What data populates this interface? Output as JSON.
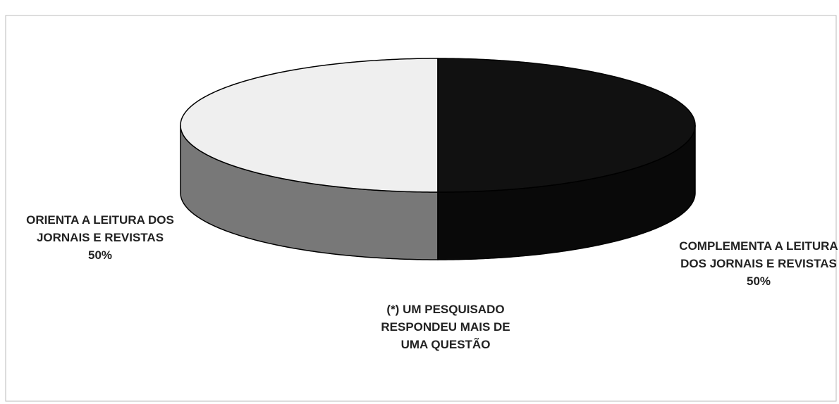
{
  "chart_data": {
    "type": "pie3d",
    "categories": [
      "ORIENTA A LEITURA DOS JORNAIS E REVISTAS",
      "COMPLEMENTA A LEITURA DOS JORNAIS E REVISTAS"
    ],
    "values": [
      50,
      50
    ],
    "value_labels": [
      "50%",
      "50%"
    ],
    "colors": [
      "#efefef",
      "#111111"
    ],
    "annotation": "(*) UM PESQUISADO RESPONDEU MAIS DE UMA QUESTÃO"
  }
}
